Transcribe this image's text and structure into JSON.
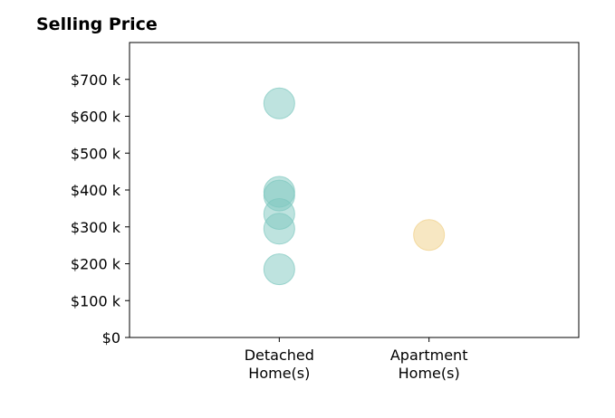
{
  "chart_data": {
    "type": "scatter",
    "title": "Selling Price",
    "xlabel": "",
    "ylabel": "",
    "categories": [
      "Detached\nHome(s)",
      "Apartment\nHome(s)"
    ],
    "x_range": [
      -1,
      2
    ],
    "ylim": [
      0,
      800000
    ],
    "y_ticks": [
      {
        "value": 0,
        "label": "$0"
      },
      {
        "value": 100000,
        "label": "$100 k"
      },
      {
        "value": 200000,
        "label": "$200 k"
      },
      {
        "value": 300000,
        "label": "$300 k"
      },
      {
        "value": 400000,
        "label": "$400 k"
      },
      {
        "value": 500000,
        "label": "$500 k"
      },
      {
        "value": 600000,
        "label": "$600 k"
      },
      {
        "value": 700000,
        "label": "$700 k"
      }
    ],
    "grid": false,
    "series": [
      {
        "category": "Detached\nHome(s)",
        "color": "#7ec8bf",
        "values": [
          635000,
          395000,
          385000,
          335000,
          295000,
          185000
        ]
      },
      {
        "category": "Apartment\nHome(s)",
        "color": "#f0cf85",
        "values": [
          278000
        ]
      }
    ]
  }
}
